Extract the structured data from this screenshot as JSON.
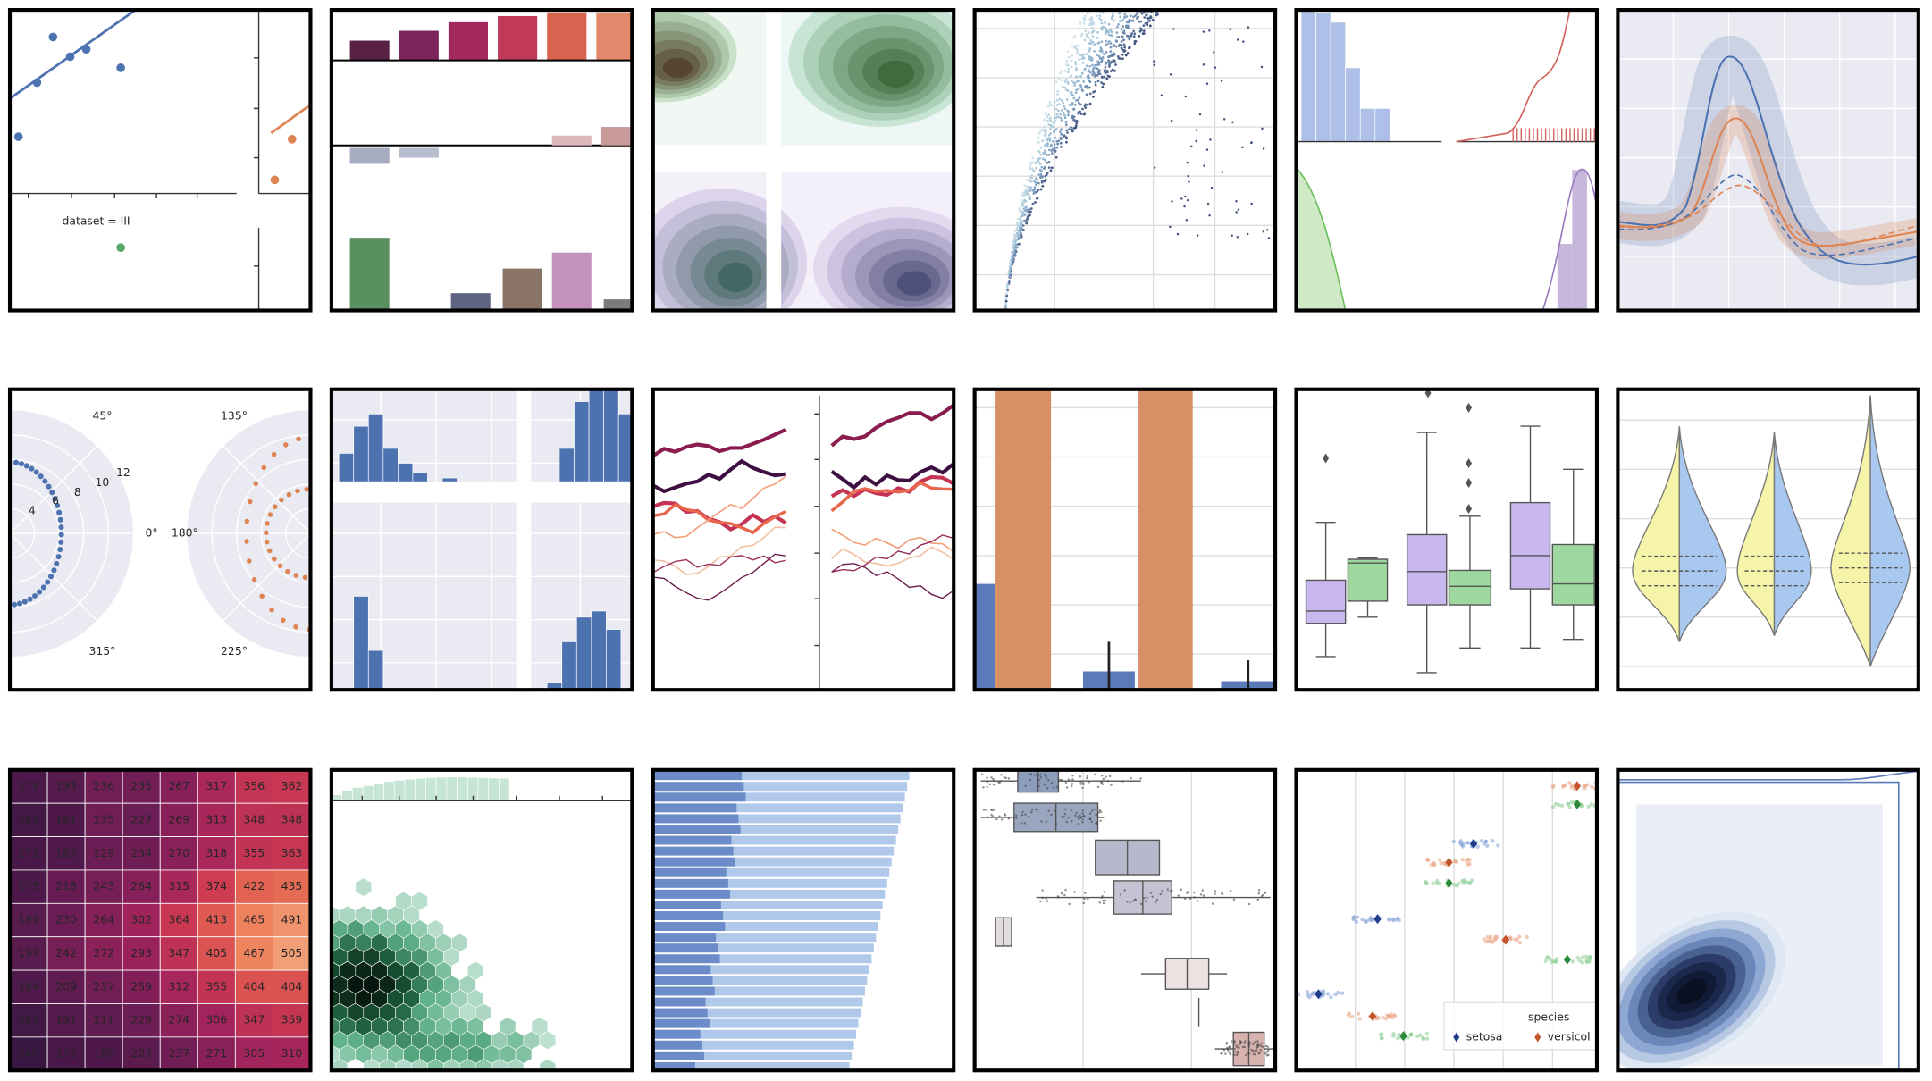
{
  "panel_1": {
    "label": "dataset = III"
  },
  "polar": {
    "angle_labels": [
      "45°",
      "0°",
      "315°",
      "135°",
      "180°",
      "225°"
    ],
    "radius_labels": [
      "4",
      "6",
      "8",
      "10",
      "12"
    ]
  },
  "heatmap": {
    "rows": [
      [
        178,
        193,
        236,
        235,
        267,
        317,
        356,
        362
      ],
      [
        163,
        181,
        235,
        227,
        269,
        313,
        348,
        348
      ],
      [
        172,
        183,
        229,
        234,
        270,
        318,
        355,
        363
      ],
      [
        178,
        218,
        243,
        264,
        315,
        374,
        422,
        435
      ],
      [
        199,
        230,
        264,
        302,
        364,
        413,
        465,
        491
      ],
      [
        199,
        242,
        272,
        293,
        347,
        405,
        467,
        505
      ],
      [
        184,
        209,
        237,
        259,
        312,
        355,
        404,
        404
      ],
      [
        162,
        191,
        211,
        229,
        274,
        306,
        347,
        359
      ],
      [
        146,
        172,
        180,
        203,
        237,
        271,
        305,
        310
      ]
    ]
  },
  "legend": {
    "title": "species",
    "entries": [
      "setosa",
      "versicol"
    ]
  }
}
